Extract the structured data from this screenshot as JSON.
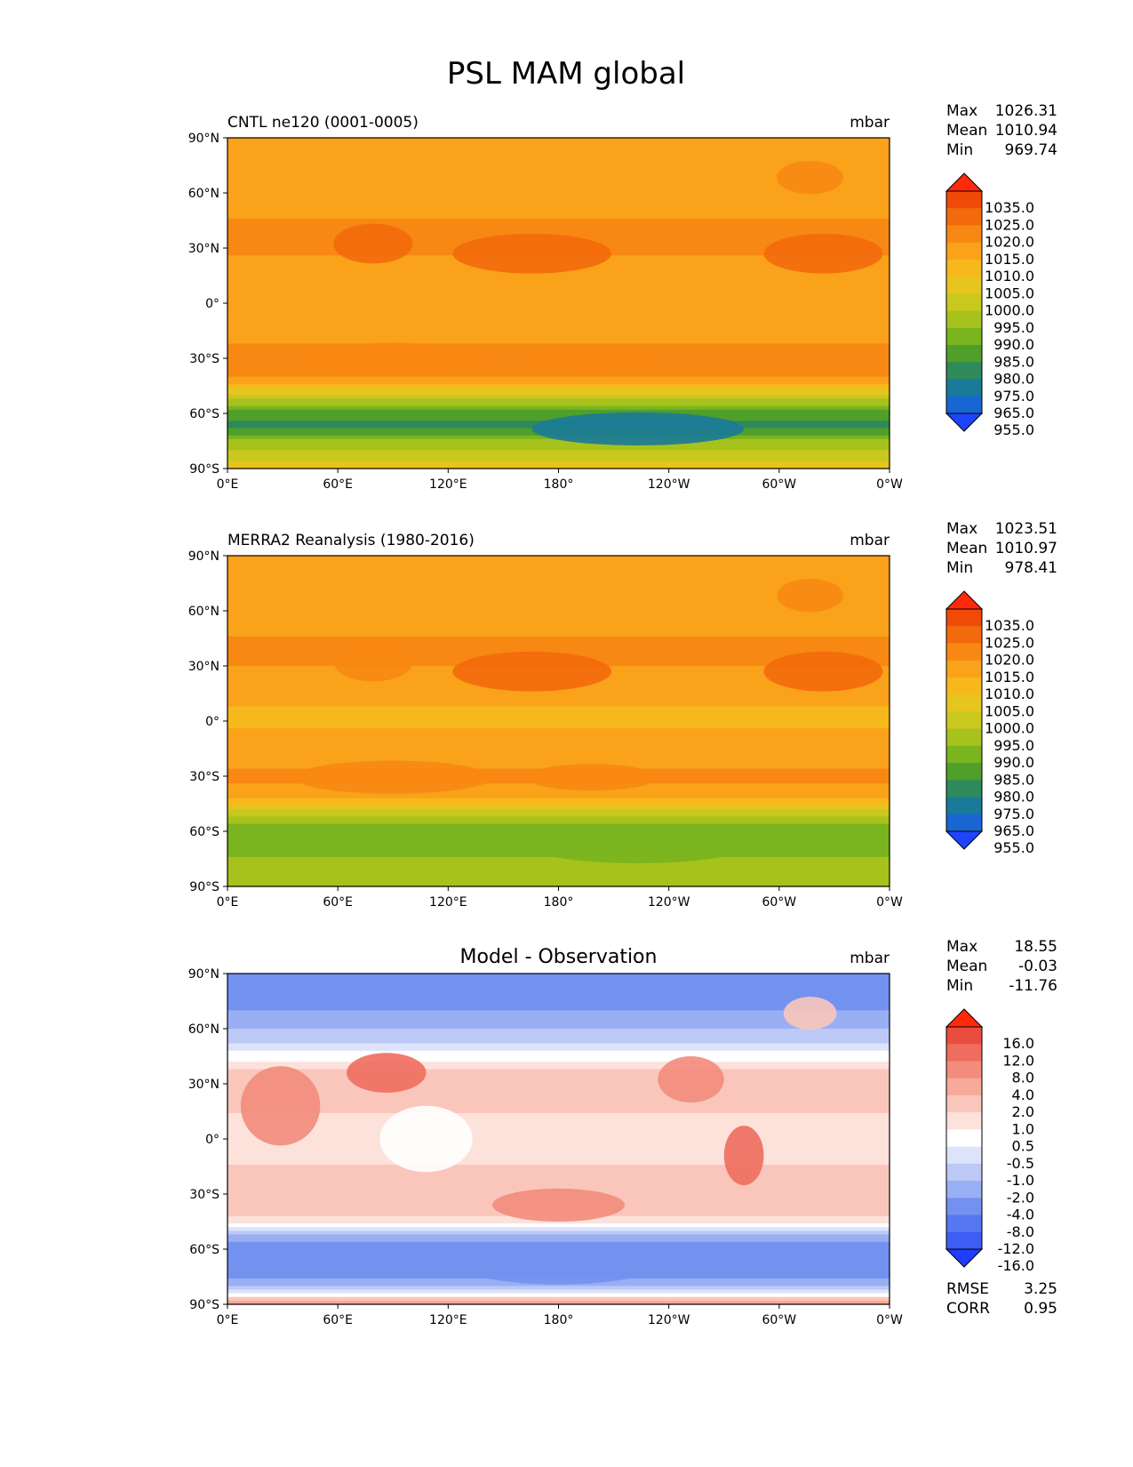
{
  "figure": {
    "title": "PSL MAM global"
  },
  "colors": {
    "land_outline": "#1a1a1a",
    "panel1_palette": [
      "#1f44ff",
      "#1766d4",
      "#197a99",
      "#2e8a5a",
      "#4f9f2a",
      "#7ab41e",
      "#a7c21c",
      "#c9c81e",
      "#e6c51c",
      "#f7b81b",
      "#f9a21a",
      "#f78813",
      "#f36a0d",
      "#f04a08",
      "#ff2a0a"
    ],
    "diff_palette": [
      "#1f3dff",
      "#3d5df5",
      "#5577f0",
      "#7392f0",
      "#98aff3",
      "#bcc9f6",
      "#dde3fa",
      "#ffffff",
      "#fde2dc",
      "#fac6bb",
      "#f7a99a",
      "#f28c7c",
      "#ee6d5e",
      "#ea4d40",
      "#ff2a0a"
    ]
  },
  "chart_data": [
    {
      "type": "heatmap",
      "title": "CNTL ne120 (0001-0005)",
      "units": "mbar",
      "stats": {
        "max_label": "Max",
        "max": "1026.31",
        "mean_label": "Mean",
        "mean": "1010.94",
        "min_label": "Min",
        "min": "969.74"
      },
      "yticks": [
        "90°N",
        "60°N",
        "30°N",
        "0°",
        "30°S",
        "60°S",
        "90°S"
      ],
      "xticks": [
        "0°E",
        "60°E",
        "120°E",
        "180°",
        "120°W",
        "60°W",
        "0°W"
      ],
      "xlim": [
        0,
        360
      ],
      "ylim": [
        -90,
        90
      ],
      "colorbar_labels": [
        "1035.0",
        "1025.0",
        "1020.0",
        "1015.0",
        "1010.0",
        "1005.0",
        "1000.0",
        "995.0",
        "990.0",
        "985.0",
        "980.0",
        "975.0",
        "965.0",
        "955.0"
      ],
      "zonal_profile": [
        {
          "lat": 90,
          "value": 1012
        },
        {
          "lat": 75,
          "value": 1010
        },
        {
          "lat": 60,
          "value": 1012
        },
        {
          "lat": 45,
          "value": 1015
        },
        {
          "lat": 30,
          "value": 1016
        },
        {
          "lat": 15,
          "value": 1012
        },
        {
          "lat": 0,
          "value": 1010
        },
        {
          "lat": -15,
          "value": 1012
        },
        {
          "lat": -30,
          "value": 1018
        },
        {
          "lat": -40,
          "value": 1015
        },
        {
          "lat": -50,
          "value": 1000
        },
        {
          "lat": -60,
          "value": 982
        },
        {
          "lat": -68,
          "value": 978
        },
        {
          "lat": -75,
          "value": 992
        },
        {
          "lat": -90,
          "value": 1002
        }
      ]
    },
    {
      "type": "heatmap",
      "title": "MERRA2 Reanalysis (1980-2016)",
      "units": "mbar",
      "stats": {
        "max_label": "Max",
        "max": "1023.51",
        "mean_label": "Mean",
        "mean": "1010.97",
        "min_label": "Min",
        "min": "978.41"
      },
      "yticks": [
        "90°N",
        "60°N",
        "30°N",
        "0°",
        "30°S",
        "60°S",
        "90°S"
      ],
      "xticks": [
        "0°E",
        "60°E",
        "120°E",
        "180°",
        "120°W",
        "60°W",
        "0°W"
      ],
      "xlim": [
        0,
        360
      ],
      "ylim": [
        -90,
        90
      ],
      "colorbar_labels": [
        "1035.0",
        "1025.0",
        "1020.0",
        "1015.0",
        "1010.0",
        "1005.0",
        "1000.0",
        "995.0",
        "990.0",
        "985.0",
        "980.0",
        "975.0",
        "965.0",
        "955.0"
      ],
      "zonal_profile": [
        {
          "lat": 90,
          "value": 1014
        },
        {
          "lat": 75,
          "value": 1012
        },
        {
          "lat": 60,
          "value": 1011
        },
        {
          "lat": 45,
          "value": 1015
        },
        {
          "lat": 30,
          "value": 1015
        },
        {
          "lat": 15,
          "value": 1011
        },
        {
          "lat": 0,
          "value": 1009
        },
        {
          "lat": -15,
          "value": 1012
        },
        {
          "lat": -30,
          "value": 1016
        },
        {
          "lat": -40,
          "value": 1013
        },
        {
          "lat": -50,
          "value": 998
        },
        {
          "lat": -60,
          "value": 986
        },
        {
          "lat": -68,
          "value": 986
        },
        {
          "lat": -75,
          "value": 990
        },
        {
          "lat": -90,
          "value": 995
        }
      ]
    },
    {
      "type": "heatmap",
      "title": "Model - Observation",
      "units": "mbar",
      "stats": {
        "max_label": "Max",
        "max": "18.55",
        "mean_label": "Mean",
        "mean": "-0.03",
        "min_label": "Min",
        "min": "-11.76"
      },
      "extra_stats": {
        "rmse_label": "RMSE",
        "rmse": "3.25",
        "corr_label": "CORR",
        "corr": "0.95"
      },
      "yticks": [
        "90°N",
        "60°N",
        "30°N",
        "0°",
        "30°S",
        "60°S",
        "90°S"
      ],
      "xticks": [
        "0°E",
        "60°E",
        "120°E",
        "180°",
        "120°W",
        "60°W",
        "0°W"
      ],
      "xlim": [
        0,
        360
      ],
      "ylim": [
        -90,
        90
      ],
      "colorbar_labels": [
        "16.0",
        "12.0",
        "8.0",
        "4.0",
        "2.0",
        "1.0",
        "0.5",
        "-0.5",
        "-1.0",
        "-2.0",
        "-4.0",
        "-8.0",
        "-12.0",
        "-16.0"
      ],
      "zonal_profile": [
        {
          "lat": 90,
          "value": -6
        },
        {
          "lat": 75,
          "value": -5
        },
        {
          "lat": 60,
          "value": -2
        },
        {
          "lat": 45,
          "value": 0
        },
        {
          "lat": 30,
          "value": 2
        },
        {
          "lat": 15,
          "value": 1
        },
        {
          "lat": 0,
          "value": 0.5
        },
        {
          "lat": -15,
          "value": 1
        },
        {
          "lat": -30,
          "value": 2
        },
        {
          "lat": -40,
          "value": 1.5
        },
        {
          "lat": -48,
          "value": 0
        },
        {
          "lat": -55,
          "value": -4
        },
        {
          "lat": -65,
          "value": -6
        },
        {
          "lat": -75,
          "value": -5
        },
        {
          "lat": -90,
          "value": 3
        }
      ]
    }
  ]
}
